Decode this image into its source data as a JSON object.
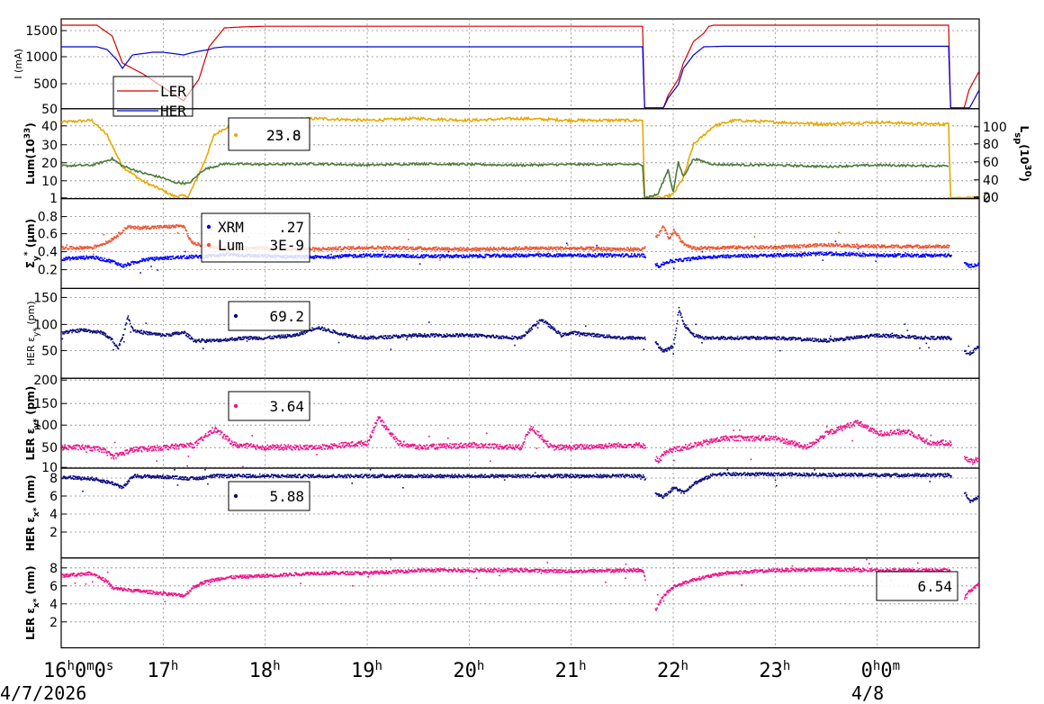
{
  "chart_data": [
    {
      "type": "line",
      "ylabel": "I (mA)",
      "yticks": [
        "1500",
        "1000",
        "500",
        "50"
      ],
      "ylim": [
        50,
        1650
      ],
      "legend": [
        {
          "label": "LER",
          "color": "#d40000"
        },
        {
          "label": "HER",
          "color": "#0000d4"
        }
      ],
      "series": [
        {
          "name": "LER",
          "color": "#d40000",
          "x": [
            16.0,
            16.35,
            16.5,
            16.6,
            16.8,
            17.0,
            17.2,
            17.35,
            17.45,
            17.6,
            17.8,
            18.0,
            21.7,
            21.72,
            21.9,
            21.95,
            22.05,
            22.1,
            22.2,
            22.3,
            22.35,
            22.4,
            23.0,
            24.0,
            24.7,
            24.72,
            24.85,
            24.9,
            25.0
          ],
          "y": [
            1600,
            1600,
            1400,
            900,
            700,
            450,
            200,
            600,
            1200,
            1550,
            1570,
            1580,
            1580,
            50,
            50,
            300,
            600,
            900,
            1300,
            1450,
            1580,
            1600,
            1600,
            1600,
            1600,
            50,
            50,
            400,
            750
          ]
        },
        {
          "name": "HER",
          "color": "#0000d4",
          "x": [
            16.0,
            16.35,
            16.45,
            16.55,
            16.6,
            16.7,
            16.9,
            17.0,
            17.2,
            17.3,
            17.45,
            17.5,
            17.6,
            18.0,
            21.7,
            21.72,
            21.9,
            21.95,
            22.05,
            22.1,
            22.2,
            22.3,
            22.5,
            23.0,
            24.7,
            24.72,
            24.9,
            25.0
          ],
          "y": [
            1200,
            1200,
            1150,
            950,
            800,
            1050,
            1100,
            1100,
            1050,
            1100,
            1150,
            1180,
            1200,
            1200,
            1200,
            50,
            50,
            250,
            500,
            800,
            1050,
            1200,
            1210,
            1210,
            1210,
            50,
            50,
            400
          ]
        }
      ]
    },
    {
      "type": "line",
      "ylabel": "Lum(10",
      "ylabel_sup": "33",
      "ylabel_close": ")",
      "y2label": "L",
      "y2label_sub": "sp",
      "y2label_mid": "(10",
      "y2label_sup": "30",
      "y2label_end": ")",
      "yticks": [
        "40",
        "30",
        "20",
        "10",
        "1"
      ],
      "ylim": [
        1,
        47
      ],
      "y2ticks": [
        "100",
        "80",
        "60",
        "40",
        "20",
        "0"
      ],
      "y2lim": [
        0,
        100
      ],
      "legend_value_front": "25.0",
      "legend_value_back": "23.8",
      "series": [
        {
          "name": "Lum",
          "color": "#e8a800",
          "x": [
            16.0,
            16.3,
            16.45,
            16.6,
            16.8,
            17.0,
            17.1,
            17.25,
            17.4,
            17.5,
            17.7,
            18.0,
            18.5,
            19.0,
            19.5,
            20.0,
            20.5,
            21.0,
            21.5,
            21.7,
            21.72,
            21.9,
            22.0,
            22.1,
            22.2,
            22.4,
            22.6,
            23.0,
            23.5,
            24.0,
            24.5,
            24.7,
            24.72,
            25.0
          ],
          "y": [
            42,
            43,
            35,
            18,
            10,
            5,
            2,
            2,
            20,
            35,
            42,
            43,
            44,
            43,
            44,
            43,
            44,
            43,
            43,
            43,
            1,
            1,
            3,
            12,
            30,
            40,
            43,
            42,
            41,
            42,
            41,
            41,
            1,
            1
          ]
        },
        {
          "name": "Lsp",
          "color": "#4c7a3a",
          "x": [
            16.0,
            16.3,
            16.4,
            16.5,
            16.6,
            16.8,
            17.0,
            17.1,
            17.25,
            17.4,
            17.6,
            18.0,
            18.5,
            19.0,
            19.5,
            20.0,
            20.5,
            21.0,
            21.5,
            21.7,
            21.72,
            21.85,
            21.95,
            22.0,
            22.05,
            22.1,
            22.2,
            22.4,
            23.0,
            23.5,
            24.0,
            24.5,
            24.7
          ],
          "y": [
            45,
            46,
            50,
            55,
            45,
            35,
            28,
            22,
            20,
            40,
            48,
            47,
            48,
            46,
            48,
            47,
            46,
            47,
            47,
            47,
            0,
            5,
            40,
            8,
            50,
            30,
            55,
            47,
            46,
            44,
            46,
            45,
            45
          ]
        }
      ]
    },
    {
      "type": "scatter",
      "ylabel": "Σ",
      "ylabel_sub": "y",
      "ylabel_sup": "*",
      "ylabel_unit": " (μm)",
      "yticks": [
        "0.8",
        "0.6",
        "0.4",
        "0.2"
      ],
      "ylim": [
        0.1,
        0.9
      ],
      "legend": [
        {
          "label": "XRM",
          "value": ".27",
          "color": "#0000ff"
        },
        {
          "label": "Lum",
          "value": "3E-9",
          "color": "#ee5533"
        }
      ],
      "series": [
        {
          "name": "XRM",
          "color": "#0000ff",
          "x": [
            16.0,
            16.3,
            16.5,
            16.6,
            16.8,
            17.0,
            17.2,
            17.4,
            17.6,
            18.0,
            18.5,
            19.0,
            19.5,
            20.0,
            20.5,
            21.0,
            21.5,
            21.7,
            21.85,
            21.95,
            22.1,
            22.3,
            22.5,
            23.0,
            23.5,
            24.0,
            24.5,
            24.7,
            24.9,
            25.0
          ],
          "y": [
            0.33,
            0.35,
            0.3,
            0.25,
            0.32,
            0.34,
            0.35,
            0.36,
            0.38,
            0.36,
            0.35,
            0.37,
            0.36,
            0.36,
            0.37,
            0.37,
            0.37,
            0.37,
            0.25,
            0.3,
            0.32,
            0.35,
            0.36,
            0.37,
            0.39,
            0.37,
            0.37,
            0.37,
            0.25,
            0.27
          ]
        },
        {
          "name": "Lum",
          "color": "#ee5533",
          "x": [
            16.0,
            16.3,
            16.45,
            16.55,
            16.6,
            16.65,
            16.7,
            17.2,
            17.25,
            17.3,
            17.5,
            17.8,
            18.0,
            18.5,
            19.0,
            19.5,
            20.0,
            20.5,
            21.0,
            21.5,
            21.7,
            21.85,
            21.9,
            21.95,
            22.0,
            22.1,
            22.2,
            22.5,
            23.0,
            23.5,
            24.0,
            24.5,
            24.7
          ],
          "y": [
            0.45,
            0.46,
            0.52,
            0.6,
            0.65,
            0.7,
            0.68,
            0.7,
            0.55,
            0.5,
            0.46,
            0.45,
            0.45,
            0.44,
            0.46,
            0.45,
            0.44,
            0.45,
            0.45,
            0.44,
            0.44,
            0.6,
            0.7,
            0.55,
            0.65,
            0.5,
            0.45,
            0.46,
            0.46,
            0.49,
            0.47,
            0.47,
            0.47
          ]
        }
      ]
    },
    {
      "type": "scatter",
      "ylabel": "HER ε",
      "ylabel_sub": "y*",
      "ylabel_unit": " (pm)",
      "yticks": [
        "150",
        "100",
        "50"
      ],
      "ylim": [
        20,
        165
      ],
      "legend_value": "69.2",
      "series": [
        {
          "name": "HER εy*",
          "color": "#0a0a80",
          "x": [
            16.0,
            16.2,
            16.4,
            16.5,
            16.55,
            16.6,
            16.65,
            16.7,
            16.8,
            17.0,
            17.2,
            17.3,
            17.5,
            17.8,
            18.0,
            18.3,
            18.5,
            18.8,
            19.0,
            19.5,
            20.0,
            20.5,
            20.7,
            20.8,
            20.9,
            21.0,
            21.5,
            21.7,
            21.8,
            21.9,
            22.0,
            22.05,
            22.1,
            22.2,
            22.3,
            22.5,
            23.0,
            23.5,
            24.0,
            24.5,
            24.7,
            24.85,
            24.9,
            25.0
          ],
          "y": [
            85,
            90,
            85,
            70,
            55,
            80,
            115,
            90,
            85,
            80,
            85,
            70,
            70,
            75,
            75,
            80,
            95,
            80,
            75,
            80,
            80,
            75,
            110,
            95,
            80,
            85,
            75,
            75,
            70,
            50,
            60,
            130,
            100,
            80,
            75,
            75,
            75,
            70,
            80,
            75,
            75,
            50,
            45,
            60
          ]
        }
      ]
    },
    {
      "type": "scatter",
      "ylabel": "LER ε",
      "ylabel_sub": "y*",
      "ylabel_unit": " (pm)",
      "yticks": [
        "200",
        "150",
        "100",
        "50",
        "10"
      ],
      "ylim": [
        10,
        200
      ],
      "legend_value": "3.64",
      "series": [
        {
          "name": "LER εy*",
          "color": "#ee1188",
          "x": [
            16.0,
            16.2,
            16.4,
            16.5,
            16.7,
            17.0,
            17.3,
            17.5,
            17.7,
            18.0,
            18.5,
            19.0,
            19.1,
            19.3,
            19.5,
            20.0,
            20.5,
            20.6,
            20.8,
            21.0,
            21.5,
            21.7,
            21.85,
            21.9,
            22.0,
            22.2,
            22.5,
            23.0,
            23.3,
            23.5,
            23.8,
            24.0,
            24.3,
            24.5,
            24.7,
            24.9,
            25.0
          ],
          "y": [
            55,
            55,
            50,
            35,
            50,
            55,
            60,
            95,
            60,
            55,
            55,
            65,
            120,
            65,
            55,
            60,
            55,
            100,
            55,
            55,
            60,
            60,
            25,
            40,
            50,
            60,
            75,
            75,
            55,
            85,
            110,
            85,
            90,
            65,
            65,
            25,
            30
          ]
        }
      ]
    },
    {
      "type": "scatter",
      "ylabel": "HER ε",
      "ylabel_sub": "x*",
      "ylabel_unit": " (nm)",
      "yticks": [
        "8",
        "6",
        "4",
        "2"
      ],
      "ylim": [
        0,
        10
      ],
      "legend_value": "5.88",
      "series": [
        {
          "name": "HER εx*",
          "color": "#0a0a80",
          "x": [
            16.0,
            16.3,
            16.5,
            16.6,
            16.7,
            17.0,
            17.3,
            17.5,
            18.0,
            19.0,
            20.0,
            21.0,
            21.7,
            21.8,
            21.9,
            22.0,
            22.1,
            22.2,
            22.4,
            23.0,
            24.0,
            24.7,
            24.85,
            24.9,
            25.0
          ],
          "y": [
            8.2,
            8.0,
            7.5,
            7.0,
            8.3,
            8.2,
            8.0,
            8.3,
            8.3,
            8.3,
            8.3,
            8.3,
            8.3,
            6.5,
            6.0,
            7.0,
            6.5,
            7.5,
            8.5,
            8.5,
            8.4,
            8.4,
            6.5,
            5.5,
            6.0
          ]
        }
      ]
    },
    {
      "type": "scatter",
      "ylabel": "LER ε",
      "ylabel_sub": "x*",
      "ylabel_unit": " (nm)",
      "yticks": [
        "8",
        "6",
        "4",
        "2"
      ],
      "ylim": [
        0,
        10
      ],
      "legend_value": "6.54",
      "series": [
        {
          "name": "LER εx*",
          "color": "#ee1188",
          "x": [
            16.0,
            16.3,
            16.45,
            16.5,
            17.2,
            17.3,
            17.4,
            17.6,
            18.0,
            18.5,
            19.0,
            19.5,
            20.0,
            20.5,
            21.0,
            21.5,
            21.7,
            21.8,
            21.9,
            22.0,
            22.2,
            22.5,
            23.0,
            23.5,
            24.0,
            24.5,
            24.7,
            24.8,
            24.9,
            25.0
          ],
          "y": [
            7.2,
            7.5,
            6.5,
            5.8,
            5.0,
            6.0,
            6.5,
            7.0,
            7.2,
            7.5,
            7.5,
            7.8,
            7.8,
            7.8,
            7.7,
            7.8,
            7.8,
            3.0,
            5.0,
            6.0,
            6.8,
            7.5,
            7.8,
            7.9,
            7.8,
            7.8,
            7.8,
            4.0,
            5.5,
            6.3
          ]
        }
      ]
    }
  ],
  "x_axis": {
    "ticks": [
      {
        "hour": 16,
        "label": "16",
        "suffix": "0",
        "suffix2": "0",
        "suffix3": "s"
      },
      {
        "hour": 17,
        "label": "17"
      },
      {
        "hour": 18,
        "label": "18"
      },
      {
        "hour": 19,
        "label": "19"
      },
      {
        "hour": 20,
        "label": "20"
      },
      {
        "hour": 21,
        "label": "21"
      },
      {
        "hour": 22,
        "label": "22"
      },
      {
        "hour": 23,
        "label": "23"
      },
      {
        "hour": 24,
        "label": "0",
        "suffix": "0"
      }
    ],
    "date_left": "4/7/2026",
    "date_right": "4/8",
    "unit_h": "h",
    "unit_m": "m",
    "unit_s": "s"
  }
}
